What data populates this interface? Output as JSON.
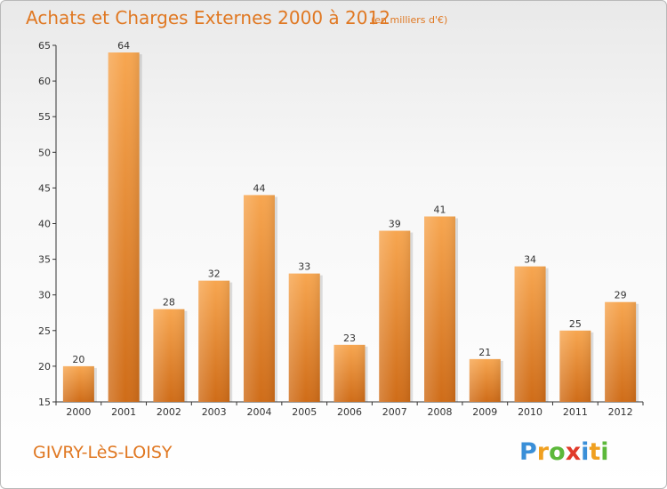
{
  "chart_data": {
    "type": "bar",
    "title": "Achats et Charges Externes 2000 à 2012",
    "subtitle": "(en milliers d'€)",
    "categories": [
      "2000",
      "2001",
      "2002",
      "2003",
      "2004",
      "2005",
      "2006",
      "2007",
      "2008",
      "2009",
      "2010",
      "2011",
      "2012"
    ],
    "values": [
      20,
      64,
      28,
      32,
      44,
      33,
      23,
      39,
      41,
      21,
      34,
      25,
      29
    ],
    "ylim": [
      15,
      65
    ],
    "yticks": [
      15,
      20,
      25,
      30,
      35,
      40,
      45,
      50,
      55,
      60,
      65
    ],
    "grid": false,
    "colors": {
      "bar_light": "#f7a650",
      "bar_dark": "#cf6c18",
      "text": "#e07822"
    }
  },
  "footer": {
    "place": "GIVRY-LèS-LOISY"
  },
  "logo": {
    "text": "Proxiti",
    "letters": [
      "P",
      "r",
      "o",
      "x",
      "i",
      "t",
      "i"
    ],
    "colors": [
      "#3a8fd8",
      "#f0a020",
      "#5cb83a",
      "#e03a2a",
      "#3a8fd8",
      "#f0a020",
      "#5cb83a"
    ]
  }
}
